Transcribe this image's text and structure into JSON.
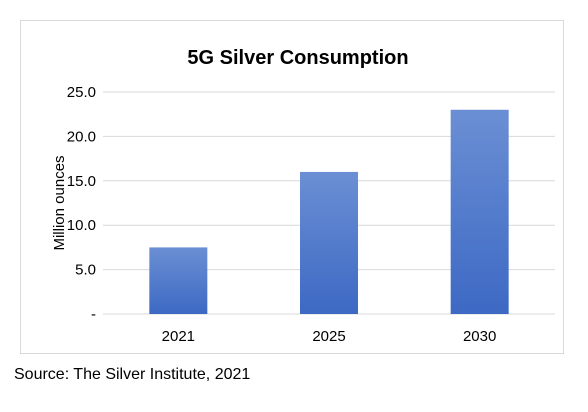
{
  "chart_data": {
    "type": "bar",
    "title": "5G Silver Consumption",
    "xlabel": "",
    "ylabel": "Million ounces",
    "categories": [
      "2021",
      "2025",
      "2030"
    ],
    "values": [
      7.5,
      16.0,
      23.0
    ],
    "ylim": [
      0,
      25
    ],
    "yticks": [
      0,
      5,
      10,
      15,
      20,
      25
    ],
    "ytick_labels": [
      "-",
      "5.0",
      "10.0",
      "15.0",
      "20.0",
      "25.0"
    ],
    "grid": true,
    "legend": "none",
    "colors": {
      "bar_top": "#6b8fd4",
      "bar_bottom": "#3d69c4",
      "grid": "#d9d9d9",
      "axis_text": "#000000"
    }
  },
  "source_note": "Source: The Silver Institute, 2021"
}
